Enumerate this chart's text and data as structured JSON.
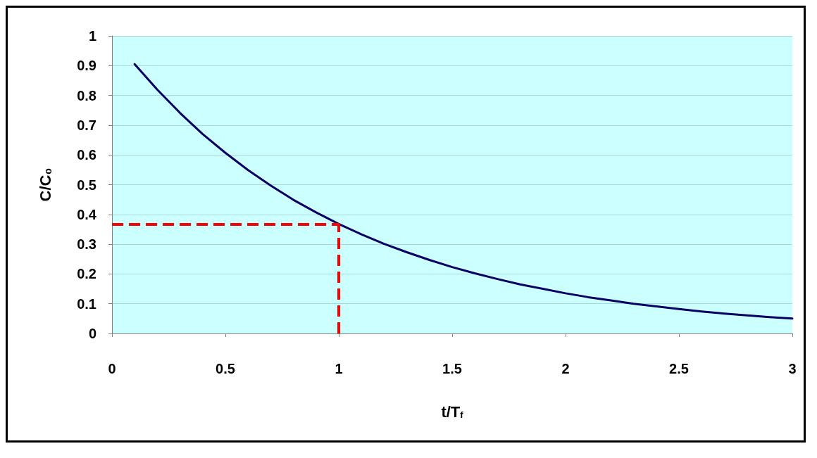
{
  "chart_data": {
    "type": "line",
    "xlabel": "t/T$_{f}$",
    "ylabel": "C/C₀",
    "x": [
      0.1,
      0.2,
      0.3,
      0.4,
      0.5,
      0.6,
      0.7,
      0.8,
      0.9,
      1.0,
      1.1,
      1.2,
      1.3,
      1.4,
      1.5,
      1.6,
      1.7,
      1.8,
      1.9,
      2.0,
      2.1,
      2.2,
      2.3,
      2.4,
      2.5,
      2.6,
      2.7,
      2.8,
      2.9,
      3.0
    ],
    "series": [
      {
        "color": "#000066",
        "values": [
          0.905,
          0.819,
          0.741,
          0.67,
          0.607,
          0.549,
          0.497,
          0.449,
          0.407,
          0.368,
          0.333,
          0.301,
          0.273,
          0.247,
          0.223,
          0.202,
          0.183,
          0.165,
          0.15,
          0.135,
          0.122,
          0.111,
          0.1,
          0.091,
          0.082,
          0.074,
          0.067,
          0.061,
          0.055,
          0.05
        ]
      }
    ],
    "xlim": [
      0,
      3
    ],
    "xticks": [
      0,
      0.5,
      1,
      1.5,
      2,
      2.5,
      3
    ],
    "ylim": [
      0,
      1
    ],
    "yticks": [
      0,
      0.1,
      0.2,
      0.3,
      0.4,
      0.5,
      0.6,
      0.7,
      0.8,
      0.9,
      1
    ],
    "ref_lines": [
      {
        "axis": "y",
        "value": 0.368,
        "color": "#ff0000",
        "line_style": "dashed"
      },
      {
        "axis": "x",
        "value": 1,
        "color": "#ff0000",
        "line_style": "dashed"
      }
    ],
    "grid": "y",
    "marker": "none",
    "line_style": "solid"
  }
}
